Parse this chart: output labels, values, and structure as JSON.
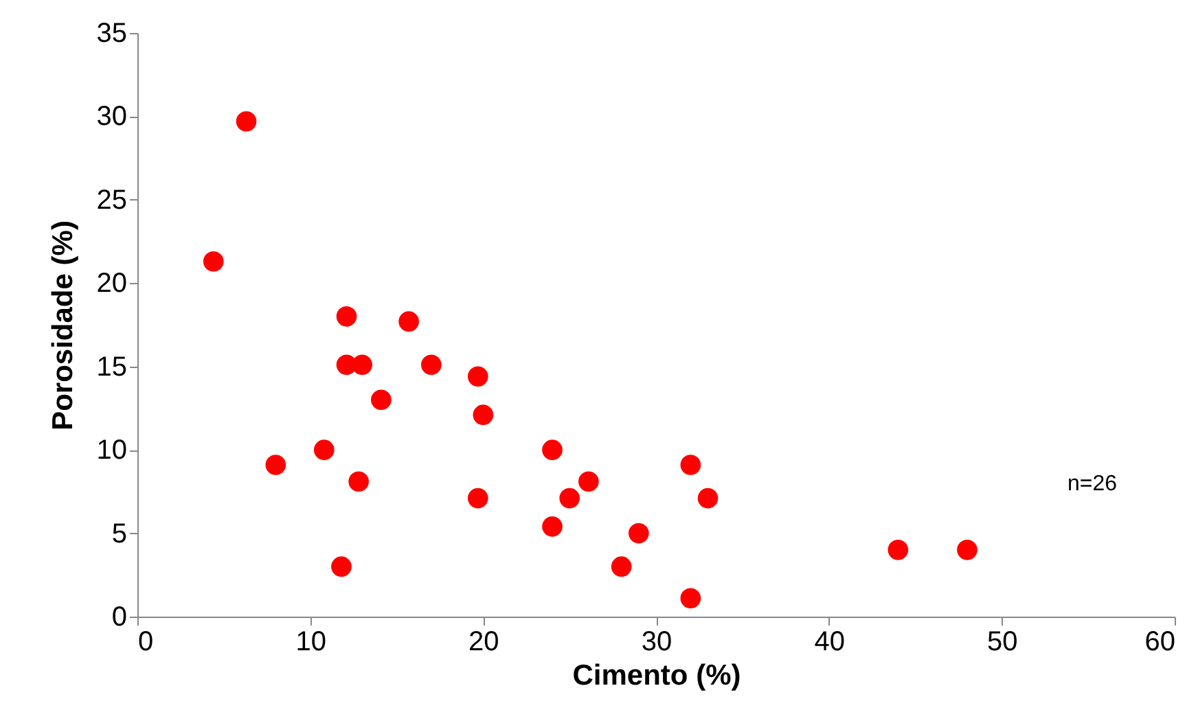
{
  "chart_data": {
    "type": "scatter",
    "xlabel": "Cimento (%)",
    "ylabel": "Porosidade (%)",
    "x": [
      6.3,
      4.4,
      12.1,
      15.7,
      12.1,
      13.0,
      17.0,
      19.7,
      14.1,
      20.0,
      10.8,
      24.0,
      32.0,
      8.0,
      12.8,
      26.1,
      19.7,
      25.0,
      33.0,
      24.0,
      29.0,
      44.0,
      48.0,
      11.8,
      28.0,
      32.0
    ],
    "series": [
      {
        "color": "#ff0000",
        "values": [
          29.7,
          21.3,
          18.0,
          17.7,
          15.1,
          15.1,
          15.1,
          14.4,
          13.0,
          12.1,
          10.0,
          10.0,
          9.1,
          9.1,
          8.1,
          8.1,
          7.1,
          7.1,
          7.1,
          5.4,
          5.0,
          4.0,
          4.0,
          3.0,
          3.0,
          1.1
        ]
      }
    ],
    "xlim": [
      0,
      60
    ],
    "xticks": [
      0,
      10,
      20,
      30,
      40,
      50,
      60
    ],
    "ylim": [
      0,
      35
    ],
    "yticks": [
      0,
      5,
      10,
      15,
      20,
      25,
      30,
      35
    ],
    "grid": false,
    "marker": "circle",
    "annotations": [
      "n=26"
    ]
  }
}
